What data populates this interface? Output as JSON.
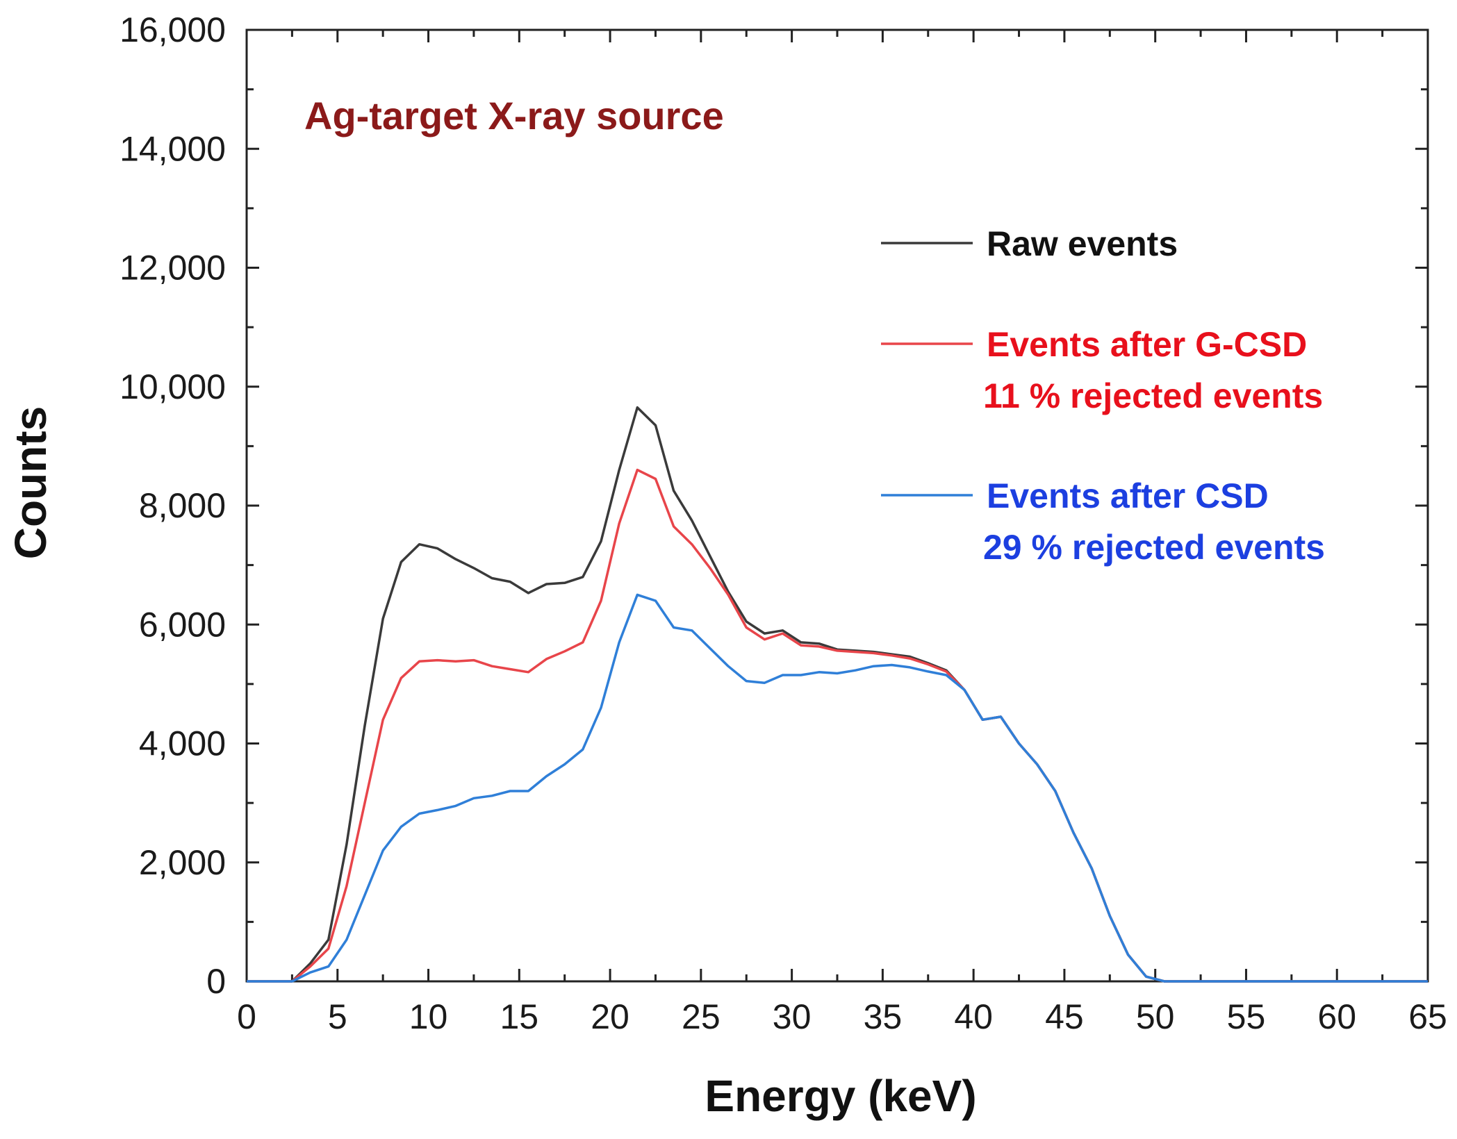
{
  "chart_data": {
    "type": "line",
    "title": "",
    "xlabel": "Energy (keV)",
    "ylabel": "Counts",
    "xlim": [
      0,
      65
    ],
    "ylim": [
      0,
      16000
    ],
    "grid": false,
    "xticks": [
      0,
      5,
      10,
      15,
      20,
      25,
      30,
      35,
      40,
      45,
      50,
      55,
      60,
      65
    ],
    "yticks": [
      0,
      2000,
      4000,
      6000,
      8000,
      10000,
      12000,
      14000,
      16000
    ],
    "xtick_labels": [
      "0",
      "5",
      "10",
      "15",
      "20",
      "25",
      "30",
      "35",
      "40",
      "45",
      "50",
      "55",
      "60",
      "65"
    ],
    "ytick_labels": [
      "0",
      "2,000",
      "4,000",
      "6,000",
      "8,000",
      "10,000",
      "12,000",
      "14,000",
      "16,000"
    ],
    "legend_position": "top-right",
    "annotations": [
      {
        "text": "Ag-target X-ray source",
        "color": "#8b1a1a"
      }
    ],
    "series": [
      {
        "name": "Raw events",
        "legend_label": "Raw events",
        "legend_sublabel": "",
        "color": "#3a3a3a",
        "label_color": "#111111",
        "x": [
          0,
          2.5,
          3.5,
          4.5,
          5.5,
          6.5,
          7.5,
          8.5,
          9.5,
          10.5,
          11.5,
          12.5,
          13.5,
          14.5,
          15.5,
          16.5,
          17.5,
          18.5,
          19.5,
          20.5,
          21.5,
          22.5,
          23.5,
          24.5,
          25.5,
          26.5,
          27.5,
          28.5,
          29.5,
          30.5,
          31.5,
          32.5,
          33.5,
          34.5,
          35.5,
          36.5,
          37.5,
          38.5,
          39.5,
          40.5,
          41.5,
          42.5,
          43.5,
          44.5,
          45.5,
          46.5,
          47.5,
          48.5,
          49.5,
          50.5,
          51.5,
          55,
          60,
          65
        ],
        "y": [
          0,
          0,
          300,
          700,
          2300,
          4300,
          6100,
          7050,
          7350,
          7280,
          7100,
          6950,
          6780,
          6720,
          6530,
          6680,
          6700,
          6800,
          7400,
          8600,
          9650,
          9350,
          8250,
          7750,
          7150,
          6550,
          6050,
          5850,
          5900,
          5700,
          5680,
          5580,
          5560,
          5540,
          5500,
          5460,
          5350,
          5230,
          4900,
          4400,
          4450,
          4000,
          3650,
          3200,
          2500,
          1900,
          1100,
          450,
          80,
          0,
          0,
          0,
          0,
          0
        ]
      },
      {
        "name": "Events after G-CSD",
        "legend_label": "Events after G-CSD",
        "legend_sublabel": "11 % rejected events",
        "color": "#e8454a",
        "label_color": "#e8101c",
        "x": [
          0,
          2.5,
          3.5,
          4.5,
          5.5,
          6.5,
          7.5,
          8.5,
          9.5,
          10.5,
          11.5,
          12.5,
          13.5,
          14.5,
          15.5,
          16.5,
          17.5,
          18.5,
          19.5,
          20.5,
          21.5,
          22.5,
          23.5,
          24.5,
          25.5,
          26.5,
          27.5,
          28.5,
          29.5,
          30.5,
          31.5,
          32.5,
          33.5,
          34.5,
          35.5,
          36.5,
          37.5,
          38.5,
          39.5,
          40.5,
          41.5,
          42.5,
          43.5,
          44.5,
          45.5,
          46.5,
          47.5,
          48.5,
          49.5,
          50.5,
          51.5,
          55,
          60,
          65
        ],
        "y": [
          0,
          0,
          250,
          550,
          1600,
          3000,
          4400,
          5100,
          5380,
          5400,
          5380,
          5400,
          5300,
          5250,
          5200,
          5420,
          5550,
          5700,
          6400,
          7700,
          8600,
          8450,
          7650,
          7350,
          6950,
          6500,
          5950,
          5750,
          5850,
          5650,
          5630,
          5560,
          5540,
          5520,
          5480,
          5430,
          5330,
          5210,
          4900,
          4400,
          4450,
          4000,
          3650,
          3200,
          2500,
          1900,
          1100,
          450,
          80,
          0,
          0,
          0,
          0,
          0
        ]
      },
      {
        "name": "Events after CSD",
        "legend_label": "Events after CSD",
        "legend_sublabel": "29 % rejected events",
        "color": "#2f7fd8",
        "label_color": "#1c3fe0",
        "x": [
          0,
          2.5,
          3.5,
          4.5,
          5.5,
          6.5,
          7.5,
          8.5,
          9.5,
          10.5,
          11.5,
          12.5,
          13.5,
          14.5,
          15.5,
          16.5,
          17.5,
          18.5,
          19.5,
          20.5,
          21.5,
          22.5,
          23.5,
          24.5,
          25.5,
          26.5,
          27.5,
          28.5,
          29.5,
          30.5,
          31.5,
          32.5,
          33.5,
          34.5,
          35.5,
          36.5,
          37.5,
          38.5,
          39.5,
          40.5,
          41.5,
          42.5,
          43.5,
          44.5,
          45.5,
          46.5,
          47.5,
          48.5,
          49.5,
          50.5,
          51.5,
          55,
          60,
          65
        ],
        "y": [
          0,
          0,
          150,
          250,
          700,
          1450,
          2200,
          2600,
          2820,
          2880,
          2950,
          3080,
          3120,
          3200,
          3200,
          3450,
          3650,
          3900,
          4600,
          5700,
          6500,
          6400,
          5950,
          5900,
          5600,
          5300,
          5050,
          5020,
          5150,
          5150,
          5200,
          5180,
          5230,
          5300,
          5320,
          5280,
          5210,
          5150,
          4900,
          4400,
          4450,
          4000,
          3650,
          3200,
          2500,
          1900,
          1100,
          450,
          80,
          0,
          0,
          0,
          0,
          0
        ]
      }
    ]
  }
}
